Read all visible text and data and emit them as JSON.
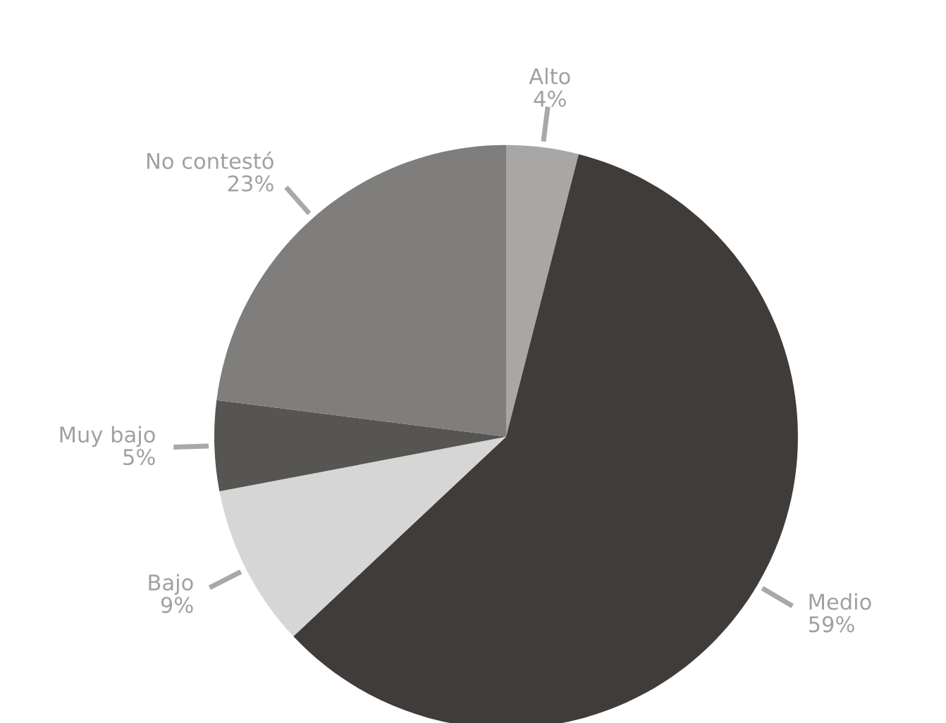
{
  "chart_data": {
    "type": "pie",
    "categories": [
      "Alto",
      "Medio",
      "Bajo",
      "Muy bajo",
      "No contestó"
    ],
    "values": [
      4,
      59,
      9,
      5,
      23
    ],
    "colors": [
      "#a8a7a5",
      "#403c3a",
      "#d6d6d6",
      "#575552",
      "#7f7e7c"
    ],
    "value_labels": [
      "4%",
      "59%",
      "9%",
      "5%",
      "23%"
    ]
  }
}
